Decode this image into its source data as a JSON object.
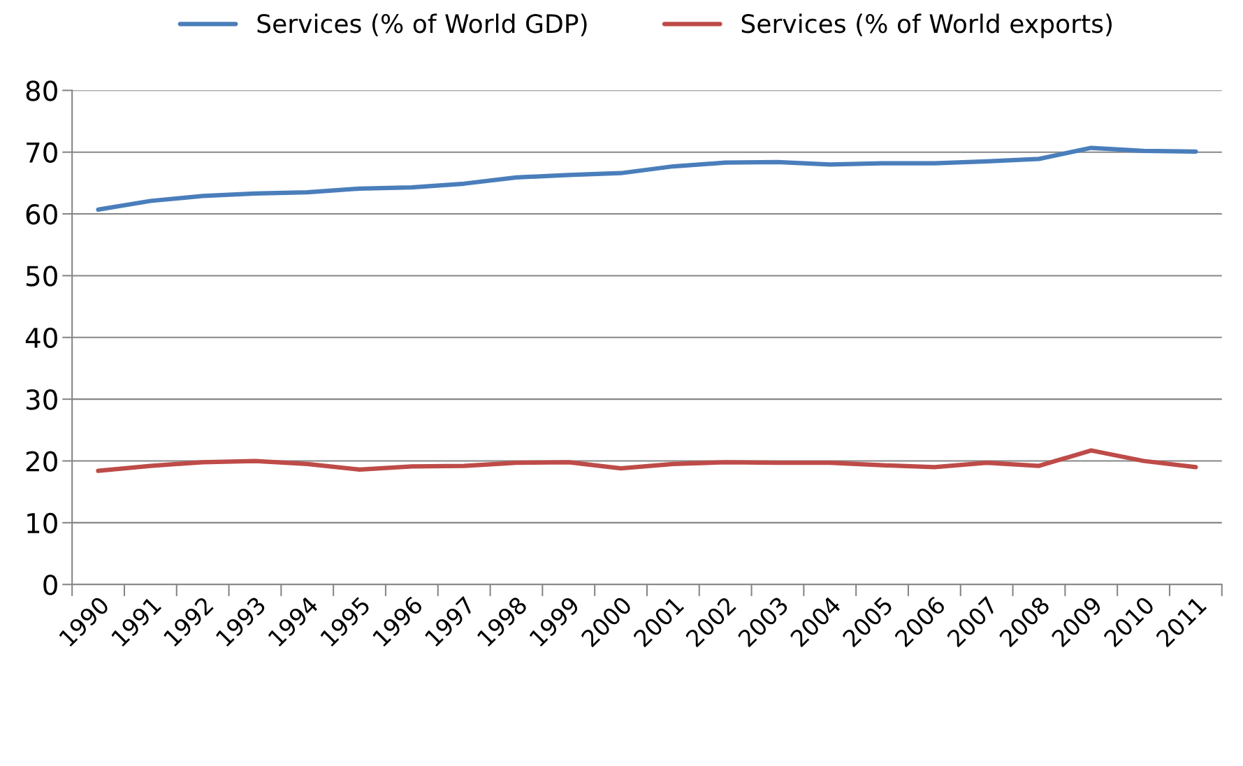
{
  "chart_data": {
    "type": "line",
    "categories": [
      "1990",
      "1991",
      "1992",
      "1993",
      "1994",
      "1995",
      "1996",
      "1997",
      "1998",
      "1999",
      "2000",
      "2001",
      "2002",
      "2003",
      "2004",
      "2005",
      "2006",
      "2007",
      "2008",
      "2009",
      "2010",
      "2011"
    ],
    "series": [
      {
        "name": "Services (% of World GDP)",
        "color": "#4a7ebb",
        "values": [
          60.7,
          62.1,
          62.9,
          63.3,
          63.5,
          64.1,
          64.3,
          64.9,
          65.9,
          66.3,
          66.6,
          67.7,
          68.3,
          68.4,
          68.0,
          68.2,
          68.2,
          68.5,
          68.9,
          70.7,
          70.2,
          70.1
        ]
      },
      {
        "name": "Services (% of World exports)",
        "color": "#be4b48",
        "values": [
          18.4,
          19.2,
          19.8,
          20.0,
          19.5,
          18.6,
          19.1,
          19.2,
          19.7,
          19.8,
          18.8,
          19.5,
          19.8,
          19.7,
          19.7,
          19.3,
          19.0,
          19.7,
          19.2,
          21.7,
          20.0,
          19.0
        ]
      }
    ],
    "ylim": [
      0,
      80
    ],
    "yticks": [
      0,
      10,
      20,
      30,
      40,
      50,
      60,
      70,
      80
    ],
    "grid": "y",
    "legend": "top",
    "marker": "none",
    "line_style": "solid"
  }
}
